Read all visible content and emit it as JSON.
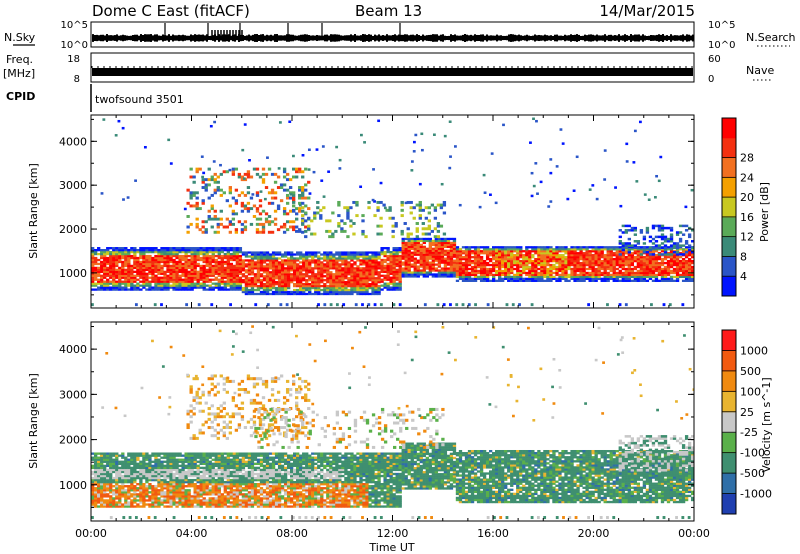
{
  "header": {
    "title": "Dome C East (fitACF)",
    "beam": "Beam 13",
    "date": "14/Mar/2015"
  },
  "nsky_panel": {
    "label": "N.Sky",
    "right_label": "N.Search",
    "left_ticks": [
      "10^5",
      "10^0"
    ],
    "right_ticks": [
      "10^5",
      "10^0"
    ]
  },
  "freq_panel": {
    "label_line1": "Freq.",
    "label_line2": "[MHz]",
    "left_ticks": [
      "18",
      "8"
    ],
    "right_label": "Nave",
    "right_ticks": [
      "60",
      "0"
    ]
  },
  "cpid": {
    "label": "CPID",
    "value": "twofsound 3501"
  },
  "x_axis": {
    "label": "Time UT",
    "ticks": [
      "00:00",
      "04:00",
      "08:00",
      "12:00",
      "16:00",
      "20:00",
      "00:00"
    ]
  },
  "chart_data": [
    {
      "type": "heatmap",
      "parameter": "Power",
      "xlabel": "Time UT",
      "ylabel": "Slant Range [km]",
      "xlim_hours": [
        0,
        24
      ],
      "ylim": [
        200,
        4600
      ],
      "y_ticks": [
        "1000",
        "2000",
        "3000",
        "4000"
      ],
      "colorbar_label": "Power [dB]",
      "colorbar_ticks": [
        "4",
        "8",
        "12",
        "16",
        "20",
        "24",
        "28"
      ],
      "colorbar_colors": [
        "#0014ff",
        "#2a55c8",
        "#3a8a78",
        "#5aaa58",
        "#c8c820",
        "#f4a000",
        "#f27020",
        "#f43010",
        "#ff0000"
      ],
      "regions": [
        {
          "t_start": 0.0,
          "t_end": 24.0,
          "r_low": 600,
          "r_high": 1500,
          "level": "strong"
        },
        {
          "t_start": 4.0,
          "t_end": 8.5,
          "r_low": 2100,
          "r_high": 3300,
          "level": "moderate"
        },
        {
          "t_start": 12.5,
          "t_end": 24.0,
          "r_low": 1200,
          "r_high": 1800,
          "level": "moderate"
        }
      ]
    },
    {
      "type": "heatmap",
      "parameter": "Velocity",
      "xlabel": "Time UT",
      "ylabel": "Slant Range [km]",
      "xlim_hours": [
        0,
        24
      ],
      "ylim": [
        200,
        4600
      ],
      "y_ticks": [
        "1000",
        "2000",
        "3000",
        "4000"
      ],
      "colorbar_label": "Velocity [m s^-1]",
      "colorbar_ticks": [
        "1000",
        "500",
        "100",
        "25",
        "-25",
        "-100",
        "-500",
        "-1000"
      ],
      "colorbar_colors": [
        "#1f3fb0",
        "#2f6fa8",
        "#3f8f70",
        "#5ab04a",
        "#c8c8c8",
        "#e8b430",
        "#f08a10",
        "#f25a10",
        "#ff1a1a"
      ],
      "regions": [
        {
          "t_start": 0.0,
          "t_end": 11.0,
          "r_low": 500,
          "r_high": 1000,
          "level": "negative"
        },
        {
          "t_start": 0.0,
          "t_end": 24.0,
          "r_low": 1000,
          "r_high": 1700,
          "level": "positive"
        },
        {
          "t_start": 4.0,
          "t_end": 8.5,
          "r_low": 2200,
          "r_high": 3300,
          "level": "negative"
        }
      ]
    }
  ]
}
